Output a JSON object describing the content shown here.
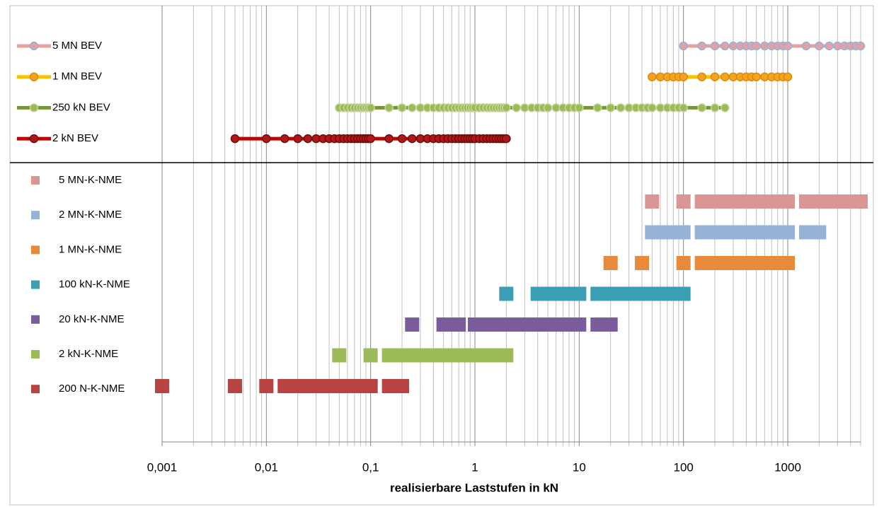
{
  "chart_data": {
    "type": "loadrange",
    "xlabel": "realisierbare Laststufen in kN",
    "log_x": true,
    "xlim": [
      0.001,
      5000
    ],
    "xticks": [
      {
        "value": 0.001,
        "label": "0,001"
      },
      {
        "value": 0.01,
        "label": "0,01"
      },
      {
        "value": 0.1,
        "label": "0,1"
      },
      1,
      10,
      100,
      1000
    ],
    "xminor": [
      0.002,
      0.003,
      0.004,
      0.005,
      0.006,
      0.007,
      0.008,
      0.009,
      0.02,
      0.03,
      0.04,
      0.05,
      0.06,
      0.07,
      0.08,
      0.09,
      0.2,
      0.3,
      0.4,
      0.5,
      0.6,
      0.7,
      0.8,
      0.9,
      2,
      3,
      4,
      5,
      6,
      7,
      8,
      9,
      20,
      30,
      40,
      50,
      60,
      70,
      80,
      90,
      200,
      300,
      400,
      500,
      600,
      700,
      800,
      900,
      2000,
      3000,
      4000,
      5000
    ],
    "series": [
      {
        "name": "5 MN BEV",
        "color": "#e6a0a0",
        "marker_color": "#e6a0a0",
        "marker_edge": "#8fb4e0",
        "values": [
          100,
          150,
          200,
          250,
          300,
          350,
          400,
          450,
          500,
          600,
          700,
          800,
          900,
          1000,
          1500,
          2000,
          2500,
          3000,
          3500,
          4000,
          4500,
          5000
        ]
      },
      {
        "name": "1 MN BEV",
        "color": "#ffc000",
        "marker_color": "#f7a21c",
        "marker_edge": "#d98a10",
        "values": [
          50,
          60,
          70,
          80,
          90,
          100,
          150,
          200,
          250,
          300,
          350,
          400,
          450,
          500,
          600,
          700,
          800,
          900,
          1000
        ]
      },
      {
        "name": "250 kN BEV",
        "color": "#77933c",
        "marker_color": "#9bbb59",
        "marker_edge": "#c3d69b",
        "values": [
          0.05,
          0.055,
          0.06,
          0.065,
          0.07,
          0.075,
          0.08,
          0.085,
          0.09,
          0.095,
          0.1,
          0.15,
          0.2,
          0.25,
          0.3,
          0.35,
          0.4,
          0.45,
          0.5,
          0.55,
          0.6,
          0.65,
          0.7,
          0.75,
          0.8,
          0.85,
          0.9,
          0.95,
          1,
          1.1,
          1.2,
          1.3,
          1.4,
          1.5,
          1.6,
          1.7,
          1.8,
          1.9,
          2,
          2.5,
          3,
          3.5,
          4,
          4.5,
          5,
          6,
          7,
          8,
          9,
          10,
          15,
          20,
          25,
          30,
          35,
          40,
          45,
          50,
          60,
          70,
          80,
          90,
          100,
          150,
          200,
          250
        ]
      },
      {
        "name": "2 kN BEV",
        "color": "#c00000",
        "marker_color": "#b01818",
        "marker_edge": "#6e0c0c",
        "values": [
          0.005,
          0.01,
          0.015,
          0.02,
          0.025,
          0.03,
          0.035,
          0.04,
          0.045,
          0.05,
          0.055,
          0.06,
          0.065,
          0.07,
          0.075,
          0.08,
          0.085,
          0.09,
          0.095,
          0.1,
          0.15,
          0.2,
          0.25,
          0.3,
          0.35,
          0.4,
          0.45,
          0.5,
          0.55,
          0.6,
          0.65,
          0.7,
          0.75,
          0.8,
          0.85,
          0.9,
          0.95,
          1,
          1.1,
          1.2,
          1.3,
          1.4,
          1.5,
          1.6,
          1.7,
          1.8,
          1.9,
          2
        ]
      }
    ],
    "range_series": [
      {
        "name": "5 MN-K-NME",
        "color": "#d99694",
        "segments": [
          [
            50
          ],
          [
            100
          ],
          [
            150,
            1000
          ],
          [
            1500,
            5000
          ]
        ]
      },
      {
        "name": "2 MN-K-NME",
        "color": "#95b3d7",
        "segments": [
          [
            50,
            100
          ],
          [
            150,
            1000
          ],
          [
            1500,
            2000
          ]
        ]
      },
      {
        "name": "1 MN-K-NME",
        "color": "#e88a3c",
        "segments": [
          [
            20
          ],
          [
            40
          ],
          [
            100
          ],
          [
            150,
            1000
          ]
        ]
      },
      {
        "name": "100 kN-K-NME",
        "color": "#3a9fb5",
        "segments": [
          [
            2
          ],
          [
            4,
            10
          ],
          [
            15,
            100
          ]
        ]
      },
      {
        "name": "20 kN-K-NME",
        "color": "#7a5c9c",
        "segments": [
          [
            0.25
          ],
          [
            0.5,
            0.7
          ],
          [
            1,
            10
          ],
          [
            15,
            20
          ]
        ]
      },
      {
        "name": "2 kN-K-NME",
        "color": "#9bbb59",
        "segments": [
          [
            0.05
          ],
          [
            0.1
          ],
          [
            0.15,
            2
          ]
        ]
      },
      {
        "name": "200 N-K-NME",
        "color": "#b94242",
        "segments": [
          [
            0.001
          ],
          [
            0.005
          ],
          [
            0.01
          ],
          [
            0.015,
            0.1
          ],
          [
            0.15,
            0.2
          ]
        ]
      }
    ]
  }
}
